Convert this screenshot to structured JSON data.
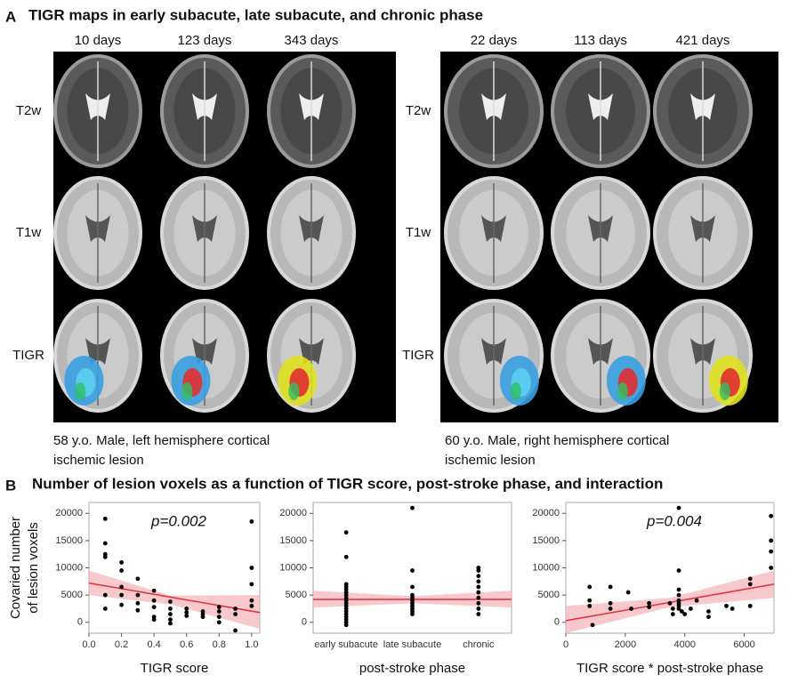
{
  "panel_a": {
    "label": "A",
    "title": "TIGR maps in early subacute, late subacute, and chronic phase",
    "groups": [
      {
        "columns": [
          "10 days",
          "123 days",
          "343 days"
        ],
        "rows": [
          "T2w",
          "T1w",
          "TIGR"
        ],
        "caption": [
          "58 y.o. Male, left hemisphere cortical",
          "ischemic lesion"
        ]
      },
      {
        "columns": [
          "22 days",
          "113 days",
          "421 days"
        ],
        "rows": [
          "T2w",
          "T1w",
          "TIGR"
        ],
        "caption": [
          "60 y.o. Male, right hemisphere cortical",
          "ischemic lesion"
        ]
      }
    ]
  },
  "panel_b": {
    "label": "B",
    "title": "Number of lesion voxels as a function of TIGR score, post-stroke phase, and interaction"
  },
  "chart_data": [
    {
      "type": "scatter",
      "y_label": [
        "Covaried number",
        "of lesion voxels"
      ],
      "x_label": "TIGR score",
      "annotation": "p=0.002",
      "color": "#000000",
      "fit_color": "#e0303a",
      "band_color": "#f4b6bb",
      "xlim": [
        0,
        1.05
      ],
      "ylim": [
        -2000,
        22000
      ],
      "xticks": [
        {
          "value": 0,
          "label": "0.0"
        },
        {
          "value": 0.2,
          "label": "0.2"
        },
        {
          "value": 0.4,
          "label": "0.4"
        },
        {
          "value": 0.6,
          "label": "0.6"
        },
        {
          "value": 0.8,
          "label": "0.8"
        },
        {
          "value": 1,
          "label": "1.0"
        }
      ],
      "yticks": [
        0,
        5000,
        10000,
        15000,
        20000
      ],
      "x": [
        0.1,
        0.1,
        0.1,
        0.1,
        0.1,
        0.1,
        0.2,
        0.2,
        0.2,
        0.2,
        0.2,
        0.3,
        0.3,
        0.3,
        0.3,
        0.4,
        0.4,
        0.4,
        0.4,
        0.4,
        0.5,
        0.5,
        0.5,
        0.5,
        0.5,
        0.6,
        0.6,
        0.6,
        0.7,
        0.7,
        0.7,
        0.8,
        0.8,
        0.8,
        0.8,
        0.9,
        0.9,
        0.9,
        1,
        1,
        1,
        1,
        1
      ],
      "values": [
        19000,
        14500,
        12500,
        12000,
        5000,
        2500,
        11000,
        9500,
        6500,
        5000,
        3200,
        8000,
        5000,
        3500,
        2200,
        5800,
        4000,
        2800,
        1000,
        500,
        3800,
        2500,
        1500,
        500,
        -200,
        2500,
        1800,
        1200,
        2000,
        1500,
        1000,
        2800,
        2000,
        1000,
        0,
        2500,
        1500,
        -1500,
        18500,
        10000,
        7000,
        4000,
        3000
      ],
      "fit": {
        "x": [
          0,
          1.05
        ],
        "y": [
          7200,
          1800
        ]
      },
      "ci": {
        "x": [
          0,
          0.5,
          1.05
        ],
        "upper": [
          9500,
          4900,
          5000
        ],
        "lower": [
          5000,
          3300,
          -1200
        ]
      }
    },
    {
      "type": "strip",
      "x_label": "post-stroke phase",
      "color": "#000000",
      "fit_color": "#e0303a",
      "band_color": "#f4b6bb",
      "ylim": [
        -2000,
        22000
      ],
      "yticks": [
        0,
        5000,
        10000,
        15000,
        20000
      ],
      "categories": [
        "early subacute",
        "late subacute",
        "chronic"
      ],
      "values": [
        [
          16500,
          12000,
          7000,
          6500,
          6000,
          5500,
          5000,
          4500,
          4000,
          3500,
          3000,
          2500,
          2000,
          1500,
          1000,
          500,
          0,
          -500
        ],
        [
          21000,
          9500,
          6500,
          5000,
          4500,
          4000,
          3500,
          3000,
          2500,
          2000,
          1500
        ],
        [
          10000,
          9500,
          8500,
          7500,
          6500,
          5500,
          4500,
          3500,
          2500,
          1500
        ]
      ],
      "fit": {
        "y": [
          4200,
          4200
        ]
      },
      "ci": {
        "upper": [
          5800,
          4800,
          5800
        ],
        "lower": [
          2700,
          3500,
          2700
        ]
      }
    },
    {
      "type": "scatter",
      "x_label": "TIGR score * post-stroke phase",
      "annotation": "p=0.004",
      "color": "#000000",
      "fit_color": "#e0303a",
      "band_color": "#f4b6bb",
      "xlim": [
        0,
        7000
      ],
      "ylim": [
        -2000,
        22000
      ],
      "xticks": [
        0,
        2000,
        4000,
        6000
      ],
      "yticks": [
        0,
        5000,
        10000,
        15000,
        20000
      ],
      "x": [
        800,
        800,
        800,
        900,
        1500,
        1500,
        1500,
        2100,
        2200,
        2800,
        2800,
        3500,
        3600,
        3600,
        3800,
        3800,
        3800,
        3800,
        3800,
        3800,
        3800,
        3800,
        3900,
        4000,
        4200,
        4400,
        4800,
        4800,
        5400,
        5600,
        6200,
        6200,
        6200,
        6900,
        6900,
        6900,
        6900
      ],
      "values": [
        6500,
        4000,
        3000,
        -500,
        6500,
        3500,
        2500,
        5500,
        2500,
        3500,
        2800,
        3500,
        2500,
        1500,
        21000,
        9500,
        6000,
        5000,
        4000,
        3500,
        3000,
        2500,
        2000,
        1500,
        2500,
        4000,
        2000,
        1000,
        3000,
        2500,
        8000,
        7000,
        3000,
        19500,
        15000,
        13000,
        10000
      ],
      "fit": {
        "x": [
          0,
          7000
        ],
        "y": [
          300,
          7000
        ]
      },
      "ci": {
        "x": [
          0,
          3500,
          7000
        ],
        "upper": [
          3000,
          4500,
          9500
        ],
        "lower": [
          -2000,
          2800,
          4500
        ]
      }
    }
  ]
}
